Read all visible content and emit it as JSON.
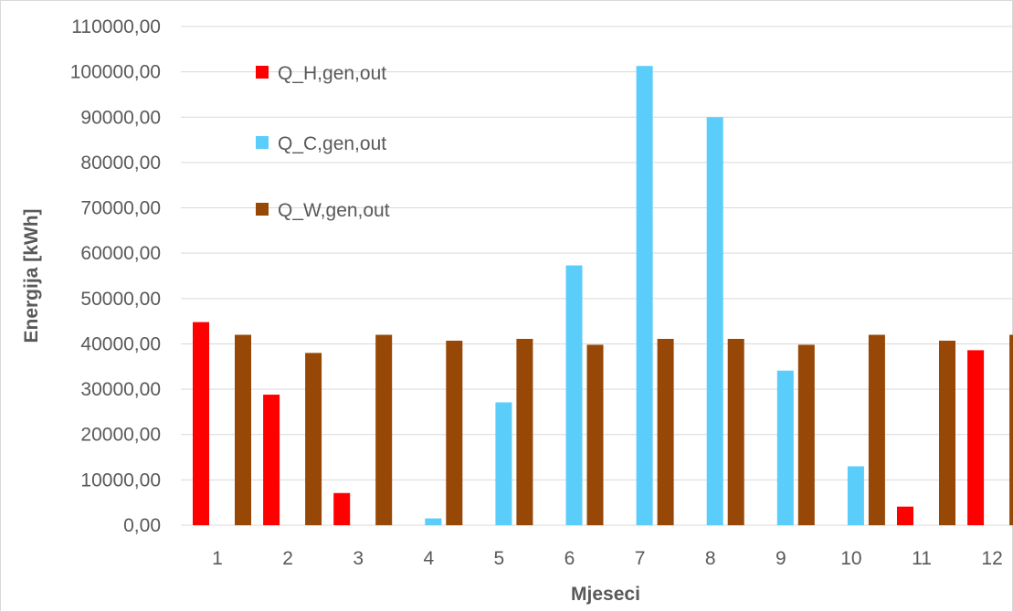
{
  "chart_data": {
    "type": "bar",
    "categories": [
      "1",
      "2",
      "3",
      "4",
      "5",
      "6",
      "7",
      "8",
      "9",
      "10",
      "11",
      "12"
    ],
    "series": [
      {
        "name": "Q_H,gen,out",
        "color": "#ff0000",
        "values": [
          44800,
          28800,
          7100,
          0,
          0,
          0,
          0,
          0,
          0,
          0,
          4100,
          38600
        ]
      },
      {
        "name": "Q_C,gen,out",
        "color": "#5bcdfa",
        "values": [
          0,
          0,
          0,
          1500,
          27100,
          57300,
          101300,
          90000,
          34100,
          13000,
          0,
          0
        ]
      },
      {
        "name": "Q_W,gen,out",
        "color": "#974706",
        "values": [
          42000,
          38000,
          42000,
          40700,
          41100,
          39800,
          41100,
          41100,
          39800,
          42000,
          40700,
          42000
        ]
      }
    ],
    "xlabel": "Mjeseci",
    "ylabel": "Energija [kWh]",
    "ylim": [
      0,
      110000
    ],
    "yticks": [
      "0,00",
      "10000,00",
      "20000,00",
      "30000,00",
      "40000,00",
      "50000,00",
      "60000,00",
      "70000,00",
      "80000,00",
      "90000,00",
      "100000,00",
      "110000,00"
    ],
    "grid": true,
    "legend_position": "top-left"
  }
}
